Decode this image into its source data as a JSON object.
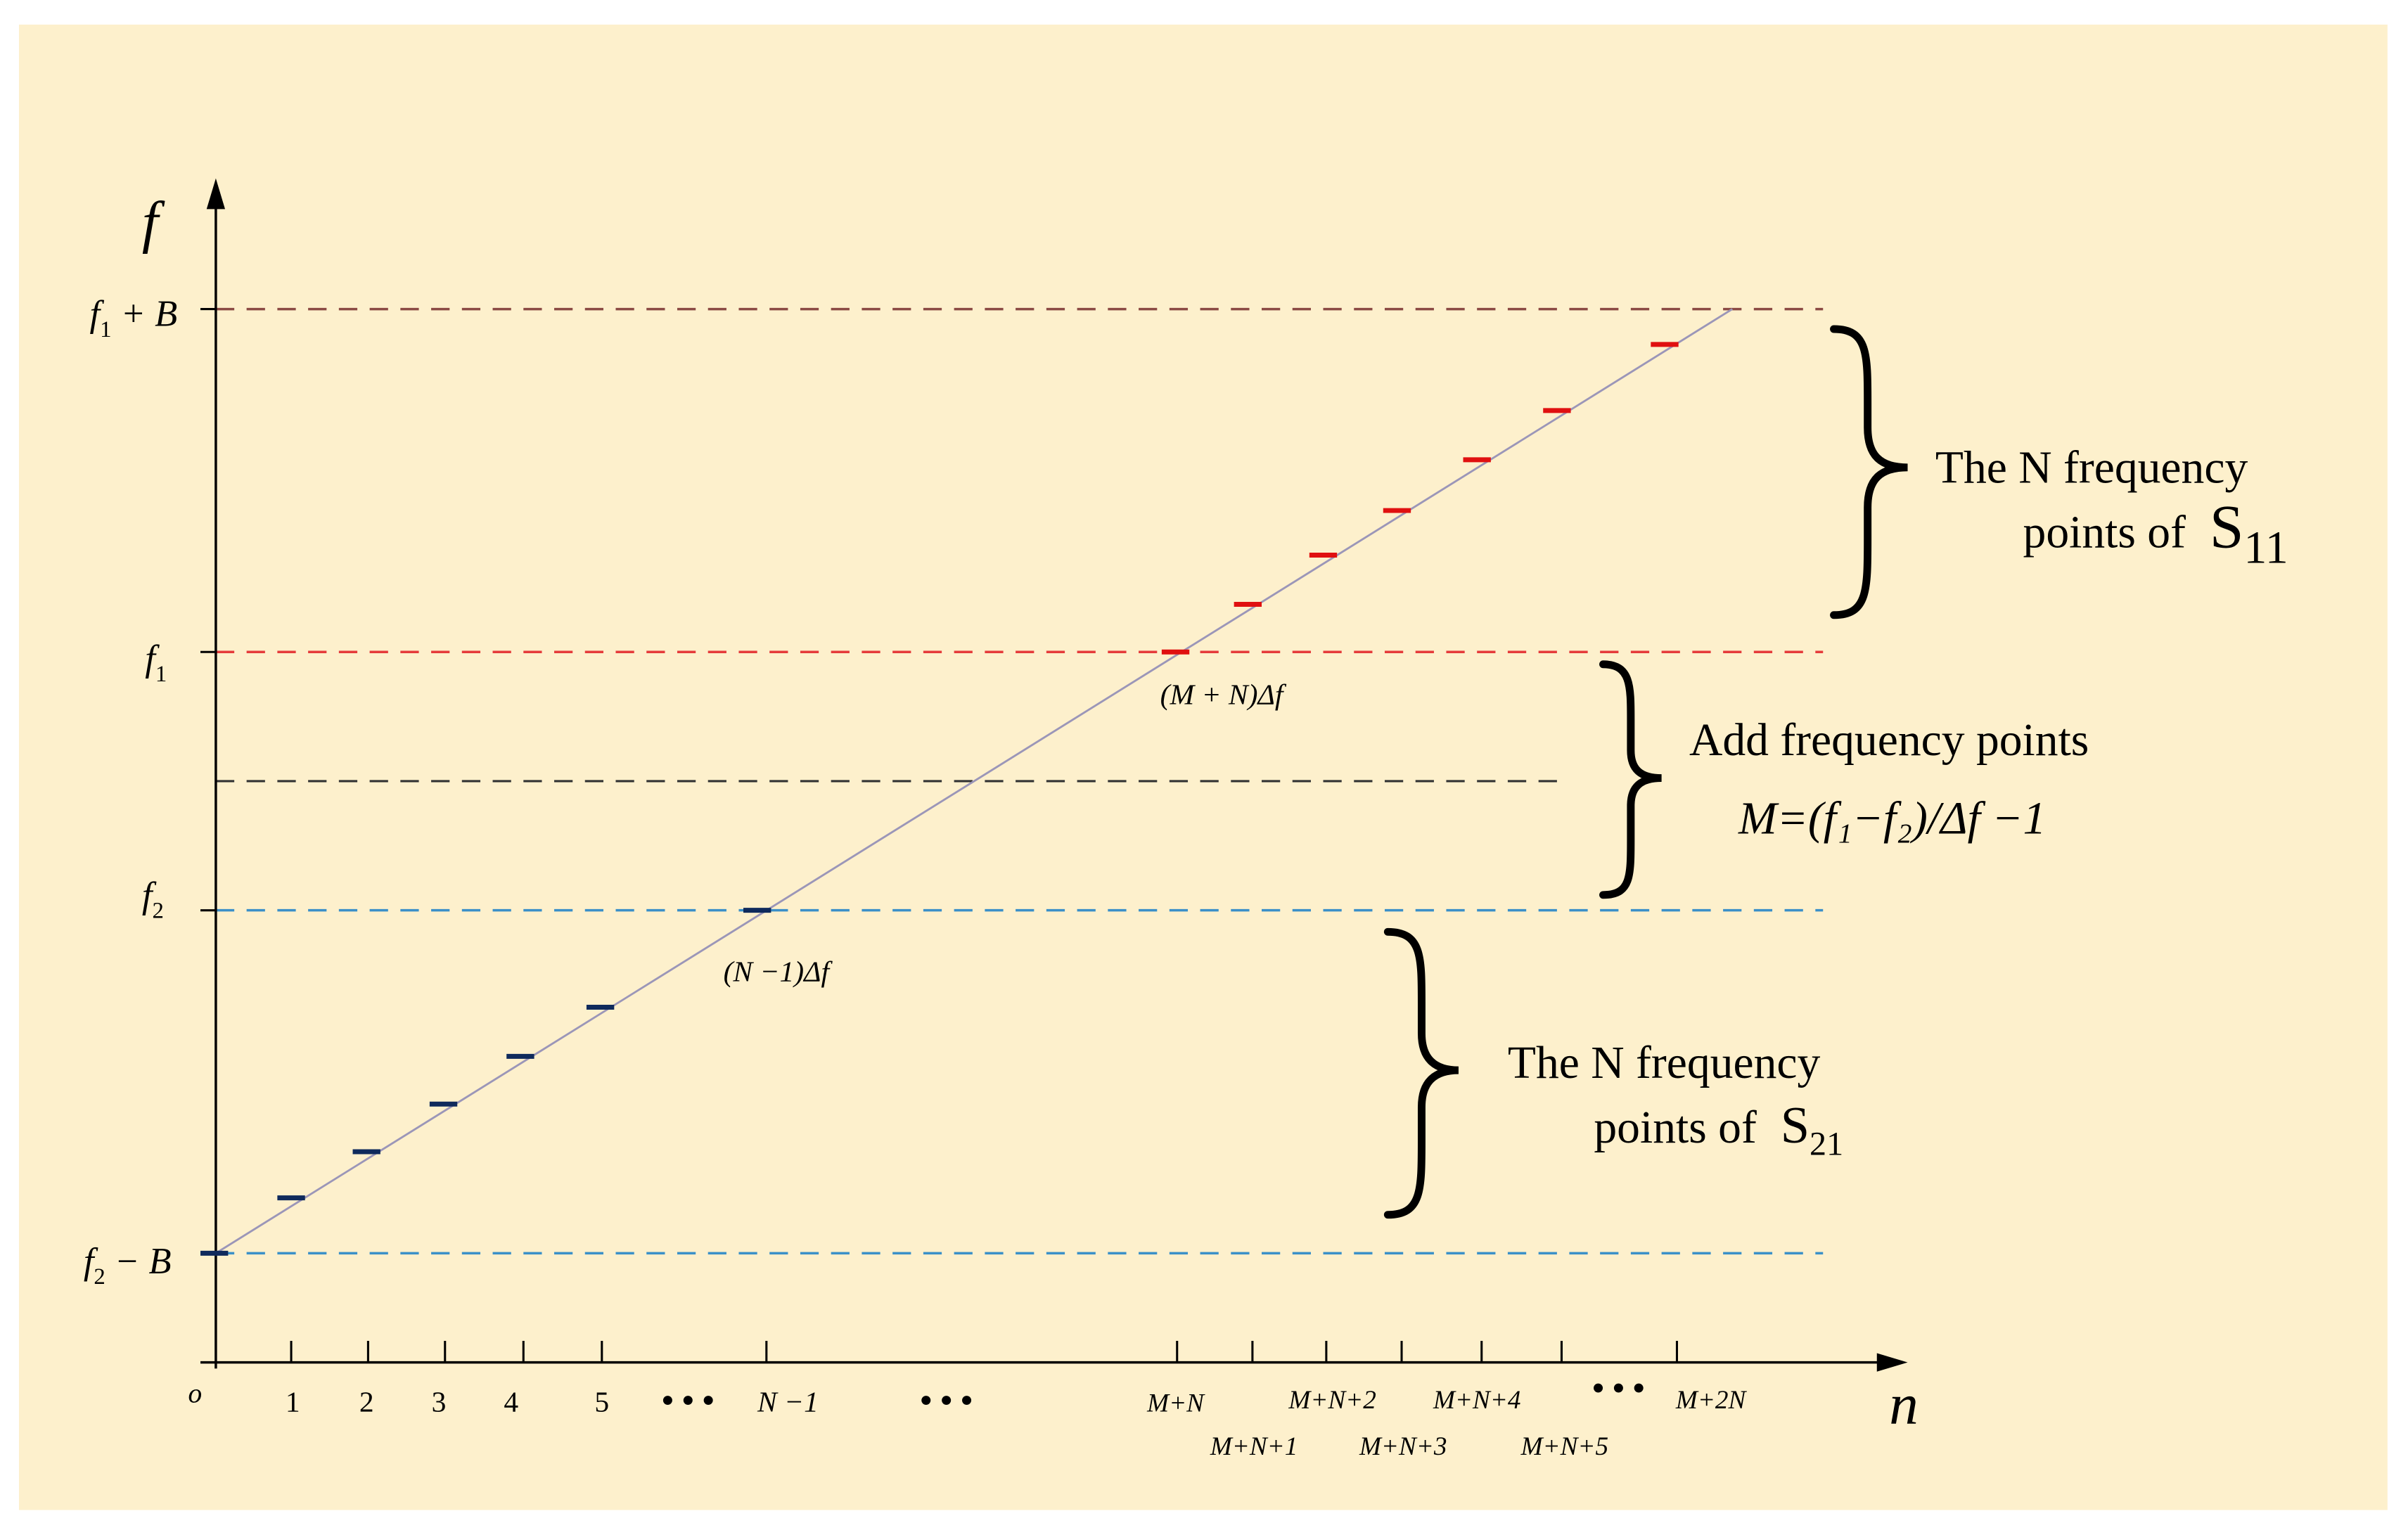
{
  "colors": {
    "background": "#fdf0cc",
    "axis": "#000000",
    "upper_boundary": "#8b4a44",
    "f1_line": "#e53b3b",
    "mid_line": "#333333",
    "f2_lines": "#3b90c8",
    "diagonal": "#9b96b8",
    "lower_marks": "#0f2a5c",
    "upper_marks": "#e01010",
    "brace": "#000000"
  },
  "axes": {
    "y_label": "f",
    "x_label": "n",
    "origin_label": "o",
    "y_ticks": [
      {
        "main": "f",
        "sub": "1",
        "suffix": " + B"
      },
      {
        "main": "f",
        "sub": "1",
        "suffix": ""
      },
      {
        "main": "f",
        "sub": "2",
        "suffix": ""
      },
      {
        "main": "f",
        "sub": "2",
        "suffix": " − B"
      }
    ],
    "x_ticks_row1": [
      "1",
      "2",
      "3",
      "4",
      "5",
      "N −1",
      "M+N",
      "M+N+2",
      "M+N+4",
      "M+2N"
    ],
    "x_ticks_row2": [
      "M+N+1",
      "M+N+3",
      "M+N+5"
    ],
    "ellipsis": "• • •"
  },
  "annotations": {
    "upper_point": "(M + N)Δf",
    "lower_point": "(N −1)Δf"
  },
  "brace_labels": {
    "s11": {
      "line1": "The N frequency",
      "line2": "points of",
      "symbol": "S",
      "sub": "11"
    },
    "added": {
      "line1": "Add frequency points",
      "formula": "M=(f₁−f₂)/Δf −1"
    },
    "s21": {
      "line1": "The N frequency",
      "line2": "points of",
      "symbol": "S",
      "sub": "21"
    }
  }
}
